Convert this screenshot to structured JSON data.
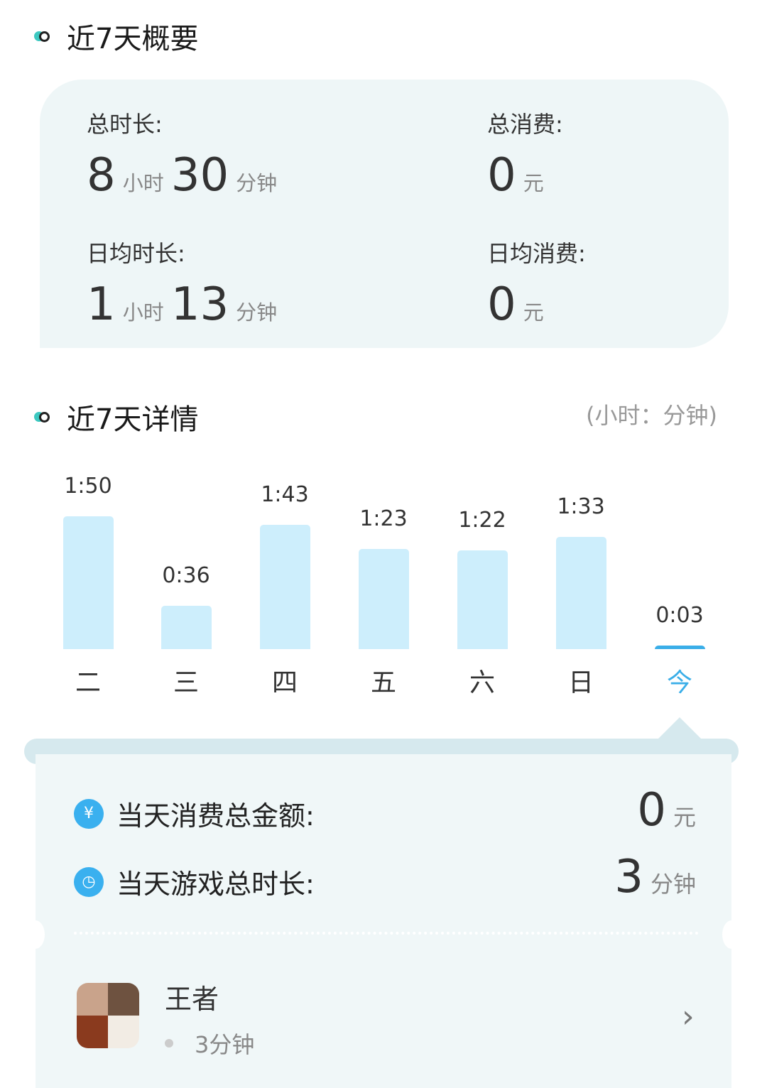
{
  "overview": {
    "title": "近7天概要",
    "total_time": {
      "label": "总时长:",
      "hours": "8",
      "hours_unit": "小时",
      "minutes": "30",
      "minutes_unit": "分钟"
    },
    "total_spend": {
      "label": "总消费:",
      "value": "0",
      "unit": "元"
    },
    "avg_time": {
      "label": "日均时长:",
      "hours": "1",
      "hours_unit": "小时",
      "minutes": "13",
      "minutes_unit": "分钟"
    },
    "avg_spend": {
      "label": "日均消费:",
      "value": "0",
      "unit": "元"
    }
  },
  "details": {
    "title": "近7天详情",
    "unit_note": "(小时：分钟)"
  },
  "chart_data": {
    "type": "bar",
    "categories": [
      "二",
      "三",
      "四",
      "五",
      "六",
      "日",
      "今"
    ],
    "labels": [
      "1:50",
      "0:36",
      "1:43",
      "1:23",
      "1:22",
      "1:33",
      "0:03"
    ],
    "values_minutes": [
      110,
      36,
      103,
      83,
      82,
      93,
      3
    ],
    "selected": "今",
    "bar_color": "#cdeefc",
    "selected_color": "#3aaee8"
  },
  "today": {
    "spend_label": "当天消费总金额:",
    "spend_value": "0",
    "spend_unit": "元",
    "time_label": "当天游戏总时长:",
    "time_value": "3",
    "time_unit": "分钟",
    "spend_icon": "money-bag-icon",
    "time_icon": "clock-icon"
  },
  "apps": [
    {
      "name": "王者",
      "time": "3分钟"
    }
  ]
}
